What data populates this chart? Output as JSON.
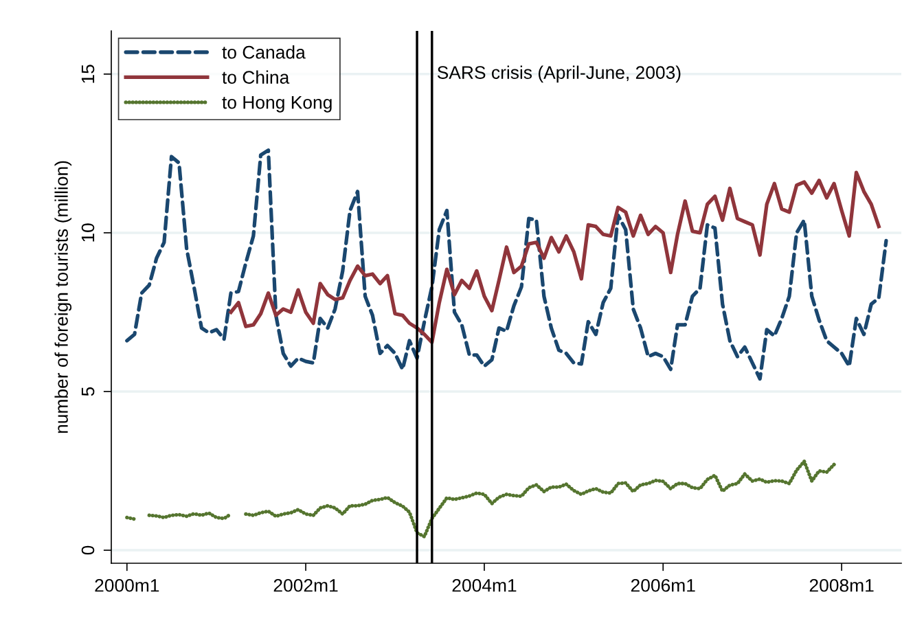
{
  "chart_data": {
    "type": "line",
    "ylabel": "number of foreign tourists (million)",
    "xlim": [
      "1999-10-29",
      "2008-09-01"
    ],
    "ylim": [
      -0.41,
      16.36
    ],
    "xticks": [
      {
        "value": "2000-01",
        "label": "2000m1"
      },
      {
        "value": "2002-01",
        "label": "2002m1"
      },
      {
        "value": "2004-01",
        "label": "2004m1"
      },
      {
        "value": "2006-01",
        "label": "2006m1"
      },
      {
        "value": "2008-01",
        "label": "2008m1"
      }
    ],
    "yticks": [
      0,
      5,
      10,
      15
    ],
    "grid": "y",
    "legend": "top left",
    "ref_lines": [
      {
        "axis": "x",
        "value": "2003-04",
        "color": "#000000"
      },
      {
        "axis": "x",
        "value": "2003-06",
        "color": "#000000",
        "label": "SARS crisis (April-June, 2003)"
      }
    ],
    "series": [
      {
        "name": "to Canada",
        "color": "#1a476f",
        "line_style": "dashed",
        "x": [
          "2000-01",
          "2000-02",
          "2000-03",
          "2000-04",
          "2000-05",
          "2000-06",
          "2000-07",
          "2000-08",
          "2000-09",
          "2000-10",
          "2000-11",
          "2000-12",
          "2001-01",
          "2001-02",
          "2001-03",
          "2001-04",
          "2001-05",
          "2001-06",
          "2001-07",
          "2001-08",
          "2001-09",
          "2001-10",
          "2001-11",
          "2001-12",
          "2002-01",
          "2002-02",
          "2002-03",
          "2002-04",
          "2002-05",
          "2002-06",
          "2002-07",
          "2002-08",
          "2002-09",
          "2002-10",
          "2002-11",
          "2002-12",
          "2003-01",
          "2003-02",
          "2003-03",
          "2003-04",
          "2003-05",
          "2003-06",
          "2003-07",
          "2003-08",
          "2003-09",
          "2003-10",
          "2003-11",
          "2003-12",
          "2004-01",
          "2004-02",
          "2004-03",
          "2004-04",
          "2004-05",
          "2004-06",
          "2004-07",
          "2004-08",
          "2004-09",
          "2004-10",
          "2004-11",
          "2004-12",
          "2005-01",
          "2005-02",
          "2005-03",
          "2005-04",
          "2005-05",
          "2005-06",
          "2005-07",
          "2005-08",
          "2005-09",
          "2005-10",
          "2005-11",
          "2005-12",
          "2006-01",
          "2006-02",
          "2006-03",
          "2006-04",
          "2006-05",
          "2006-06",
          "2006-07",
          "2006-08",
          "2006-09",
          "2006-10",
          "2006-11",
          "2006-12",
          "2007-01",
          "2007-02",
          "2007-03",
          "2007-04",
          "2007-05",
          "2007-06",
          "2007-07",
          "2007-08",
          "2007-09",
          "2007-10",
          "2007-11",
          "2007-12",
          "2008-01",
          "2008-02",
          "2008-03",
          "2008-04",
          "2008-05",
          "2008-06",
          "2008-07"
        ],
        "values": [
          6.6,
          6.8,
          8.1,
          8.35,
          9.2,
          9.7,
          12.4,
          12.2,
          9.5,
          8.3,
          7.0,
          6.85,
          6.95,
          6.65,
          8.1,
          8.15,
          9.05,
          9.9,
          12.45,
          12.6,
          7.4,
          6.2,
          5.8,
          6.05,
          5.95,
          5.9,
          7.3,
          7.0,
          7.6,
          8.8,
          10.7,
          11.3,
          8.0,
          7.4,
          6.2,
          6.45,
          6.2,
          5.7,
          6.6,
          6.05,
          7.2,
          8.3,
          10.1,
          10.7,
          7.5,
          7.1,
          6.15,
          6.15,
          5.8,
          6.0,
          7.0,
          6.9,
          7.7,
          8.3,
          10.45,
          10.4,
          8.0,
          7.0,
          6.3,
          6.2,
          5.9,
          5.87,
          7.2,
          6.8,
          7.8,
          8.25,
          10.55,
          10.1,
          7.6,
          7.0,
          6.1,
          6.2,
          6.1,
          5.7,
          7.1,
          7.1,
          8.0,
          8.25,
          10.25,
          10.15,
          7.75,
          6.6,
          6.1,
          6.4,
          5.9,
          5.4,
          6.95,
          6.75,
          7.3,
          8.0,
          10.0,
          10.4,
          8.0,
          7.25,
          6.6,
          6.4,
          6.2,
          5.8,
          7.3,
          6.8,
          7.75,
          7.95,
          9.75
        ]
      },
      {
        "name": "to China",
        "color": "#90353b",
        "line_style": "solid",
        "x": [
          "2001-03",
          "2001-04",
          "2001-05",
          "2001-06",
          "2001-07",
          "2001-08",
          "2001-09",
          "2001-10",
          "2001-11",
          "2001-12",
          "2002-01",
          "2002-02",
          "2002-03",
          "2002-04",
          "2002-05",
          "2002-06",
          "2002-07",
          "2002-08",
          "2002-09",
          "2002-10",
          "2002-11",
          "2002-12",
          "2003-01",
          "2003-02",
          "2003-03",
          "2003-04",
          "2003-05",
          "2003-06",
          "2003-07",
          "2003-08",
          "2003-09",
          "2003-10",
          "2003-11",
          "2003-12",
          "2004-01",
          "2004-02",
          "2004-03",
          "2004-04",
          "2004-05",
          "2004-06",
          "2004-07",
          "2004-08",
          "2004-09",
          "2004-10",
          "2004-11",
          "2004-12",
          "2005-01",
          "2005-02",
          "2005-03",
          "2005-04",
          "2005-05",
          "2005-06",
          "2005-07",
          "2005-08",
          "2005-09",
          "2005-10",
          "2005-11",
          "2005-12",
          "2006-01",
          "2006-02",
          "2006-03",
          "2006-04",
          "2006-05",
          "2006-06",
          "2006-07",
          "2006-08",
          "2006-09",
          "2006-10",
          "2006-11",
          "2006-12",
          "2007-01",
          "2007-02",
          "2007-03",
          "2007-04",
          "2007-05",
          "2007-06",
          "2007-07",
          "2007-08",
          "2007-09",
          "2007-10",
          "2007-11",
          "2007-12",
          "2008-01",
          "2008-02",
          "2008-03",
          "2008-04",
          "2008-05",
          "2008-06"
        ],
        "values": [
          7.5,
          7.8,
          7.05,
          7.1,
          7.45,
          8.1,
          7.4,
          7.6,
          7.5,
          8.2,
          7.5,
          7.15,
          8.4,
          8.05,
          7.9,
          7.95,
          8.5,
          8.95,
          8.65,
          8.7,
          8.4,
          8.65,
          7.45,
          7.4,
          7.15,
          7.0,
          6.8,
          6.55,
          7.8,
          8.85,
          8.05,
          8.5,
          8.25,
          8.8,
          8.0,
          7.55,
          8.5,
          9.55,
          8.75,
          8.95,
          9.65,
          9.7,
          9.2,
          9.85,
          9.4,
          9.9,
          9.4,
          8.55,
          10.25,
          10.2,
          9.95,
          9.9,
          10.8,
          10.65,
          9.9,
          10.55,
          9.95,
          10.2,
          10.0,
          8.75,
          9.95,
          11.0,
          10.05,
          10.0,
          10.9,
          11.15,
          10.4,
          11.4,
          10.45,
          10.35,
          10.25,
          9.3,
          10.9,
          11.55,
          10.75,
          10.65,
          11.5,
          11.6,
          11.25,
          11.65,
          11.1,
          11.55,
          10.7,
          9.9,
          11.9,
          11.3,
          10.9,
          10.2
        ]
      },
      {
        "name": "to Hong Kong",
        "color": "#55752f",
        "line_style": "dotted",
        "x": [
          "2000-01",
          "2000-02",
          "2000-03",
          "2000-04",
          "2000-05",
          "2000-06",
          "2000-07",
          "2000-08",
          "2000-09",
          "2000-10",
          "2000-11",
          "2000-12",
          "2001-01",
          "2001-02",
          "2001-03",
          "2001-04",
          "2001-05",
          "2001-06",
          "2001-07",
          "2001-08",
          "2001-09",
          "2001-10",
          "2001-11",
          "2001-12",
          "2002-01",
          "2002-02",
          "2002-03",
          "2002-04",
          "2002-05",
          "2002-06",
          "2002-07",
          "2002-08",
          "2002-09",
          "2002-10",
          "2002-11",
          "2002-12",
          "2003-01",
          "2003-02",
          "2003-03",
          "2003-04",
          "2003-05",
          "2003-06",
          "2003-07",
          "2003-08",
          "2003-09",
          "2003-10",
          "2003-11",
          "2003-12",
          "2004-01",
          "2004-02",
          "2004-03",
          "2004-04",
          "2004-05",
          "2004-06",
          "2004-07",
          "2004-08",
          "2004-09",
          "2004-10",
          "2004-11",
          "2004-12",
          "2005-01",
          "2005-02",
          "2005-03",
          "2005-04",
          "2005-05",
          "2005-06",
          "2005-07",
          "2005-08",
          "2005-09",
          "2005-10",
          "2005-11",
          "2005-12",
          "2006-01",
          "2006-02",
          "2006-03",
          "2006-04",
          "2006-05",
          "2006-06",
          "2006-07",
          "2006-08",
          "2006-09",
          "2006-10",
          "2006-11",
          "2006-12",
          "2007-01",
          "2007-02",
          "2007-03",
          "2007-04",
          "2007-05",
          "2007-06",
          "2007-07",
          "2007-08",
          "2007-09",
          "2007-10",
          "2007-11",
          "2007-12"
        ],
        "values": [
          1.03,
          0.98,
          null,
          1.1,
          1.08,
          1.03,
          1.1,
          1.12,
          1.07,
          1.15,
          1.1,
          1.17,
          1.03,
          1.0,
          1.14,
          null,
          1.14,
          1.1,
          1.18,
          1.23,
          1.07,
          1.14,
          1.18,
          1.28,
          1.14,
          1.1,
          1.33,
          1.4,
          1.33,
          1.14,
          1.4,
          1.4,
          1.45,
          1.57,
          1.6,
          1.66,
          1.5,
          1.39,
          1.2,
          0.55,
          0.43,
          1.0,
          1.32,
          1.65,
          1.6,
          1.65,
          1.71,
          1.8,
          1.76,
          1.47,
          1.67,
          1.76,
          1.72,
          1.7,
          1.97,
          2.06,
          1.85,
          1.99,
          1.99,
          2.08,
          1.88,
          1.76,
          1.87,
          1.94,
          1.83,
          1.8,
          2.1,
          2.12,
          1.85,
          2.06,
          2.1,
          2.2,
          2.17,
          1.94,
          2.1,
          2.1,
          1.97,
          1.94,
          2.23,
          2.36,
          1.86,
          2.05,
          2.1,
          2.4,
          2.18,
          2.24,
          2.14,
          2.19,
          2.18,
          2.1,
          2.52,
          2.8,
          2.18,
          2.5,
          2.46,
          2.7
        ]
      }
    ]
  }
}
